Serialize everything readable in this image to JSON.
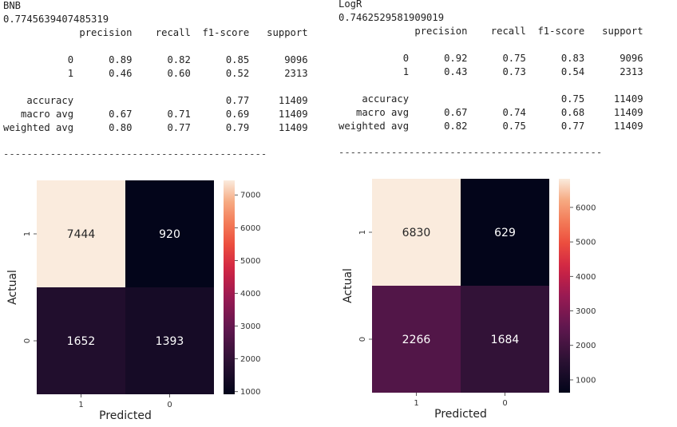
{
  "panels": [
    {
      "id": "bnb",
      "model_name": "BNB",
      "score": "0.7745639407485319",
      "report": {
        "headers": [
          "precision",
          "recall",
          "f1-score",
          "support"
        ],
        "class_rows": [
          {
            "label": "0",
            "precision": "0.89",
            "recall": "0.82",
            "f1": "0.85",
            "support": "9096"
          },
          {
            "label": "1",
            "precision": "0.46",
            "recall": "0.60",
            "f1": "0.52",
            "support": "2313"
          }
        ],
        "accuracy": {
          "label": "accuracy",
          "f1": "0.77",
          "support": "11409"
        },
        "avg_rows": [
          {
            "label": "macro avg",
            "precision": "0.67",
            "recall": "0.71",
            "f1": "0.69",
            "support": "11409"
          },
          {
            "label": "weighted avg",
            "precision": "0.80",
            "recall": "0.77",
            "f1": "0.79",
            "support": "11409"
          }
        ]
      },
      "separator": "---------------------------------------------"
    },
    {
      "id": "logr",
      "model_name": "LogR",
      "score": "0.7462529581909019",
      "report": {
        "headers": [
          "precision",
          "recall",
          "f1-score",
          "support"
        ],
        "class_rows": [
          {
            "label": "0",
            "precision": "0.92",
            "recall": "0.75",
            "f1": "0.83",
            "support": "9096"
          },
          {
            "label": "1",
            "precision": "0.43",
            "recall": "0.73",
            "f1": "0.54",
            "support": "2313"
          }
        ],
        "accuracy": {
          "label": "accuracy",
          "f1": "0.75",
          "support": "11409"
        },
        "avg_rows": [
          {
            "label": "macro avg",
            "precision": "0.67",
            "recall": "0.74",
            "f1": "0.68",
            "support": "11409"
          },
          {
            "label": "weighted avg",
            "precision": "0.82",
            "recall": "0.75",
            "f1": "0.77",
            "support": "11409"
          }
        ]
      },
      "separator": "---------------------------------------------"
    }
  ],
  "chart_data": [
    {
      "type": "heatmap",
      "title": "",
      "xlabel": "Predicted",
      "ylabel": "Actual",
      "x_categories": [
        "1",
        "0"
      ],
      "y_categories": [
        "1",
        "0"
      ],
      "values": [
        [
          7444,
          920
        ],
        [
          1652,
          1393
        ]
      ],
      "colorbar": {
        "min": 920,
        "max": 7444,
        "ticks": [
          1000,
          2000,
          3000,
          4000,
          5000,
          6000,
          7000
        ]
      },
      "colormap": "rocket"
    },
    {
      "type": "heatmap",
      "title": "",
      "xlabel": "Predicted",
      "ylabel": "Actual",
      "x_categories": [
        "1",
        "0"
      ],
      "y_categories": [
        "1",
        "0"
      ],
      "values": [
        [
          6830,
          629
        ],
        [
          2266,
          1684
        ]
      ],
      "colorbar": {
        "min": 629,
        "max": 6830,
        "ticks": [
          1000,
          2000,
          3000,
          4000,
          5000,
          6000
        ]
      },
      "colormap": "rocket"
    }
  ]
}
